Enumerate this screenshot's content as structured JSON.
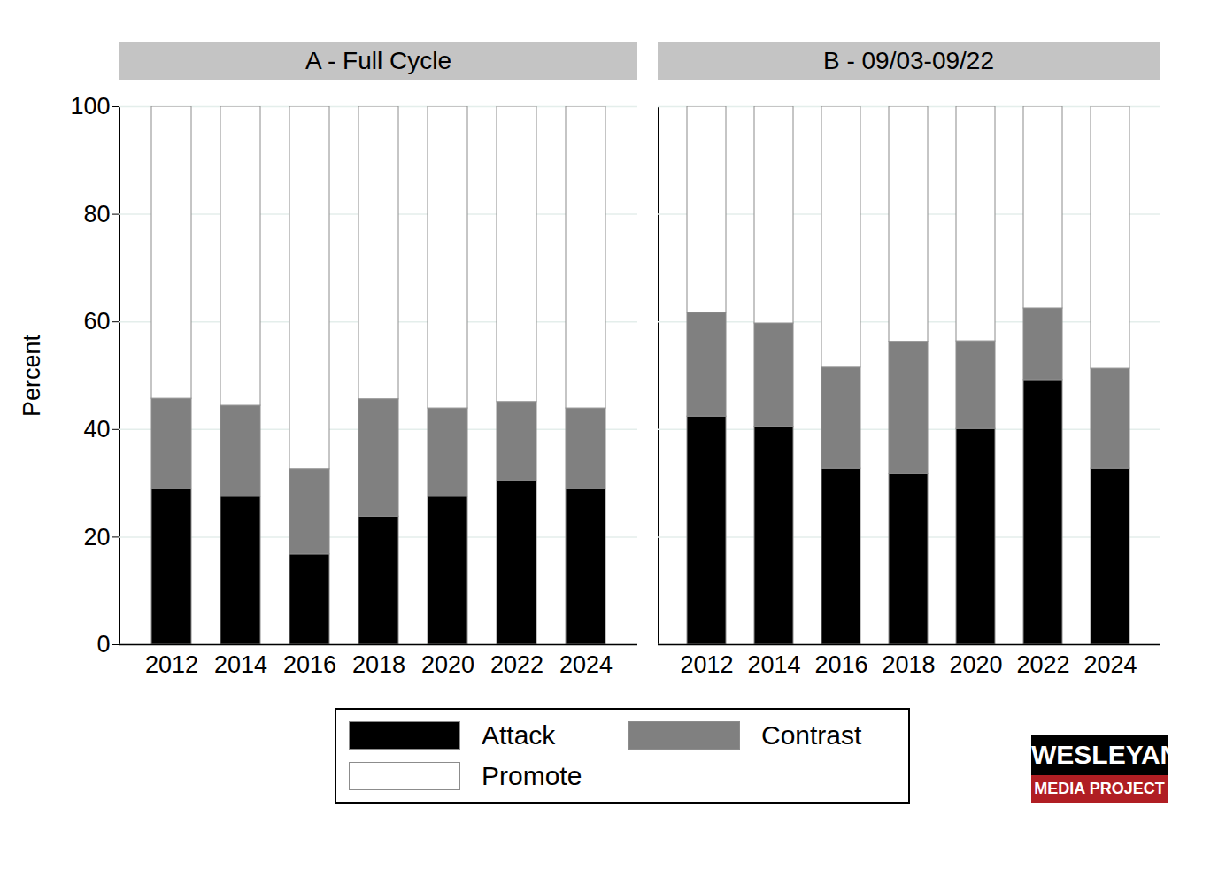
{
  "chart_data": [
    {
      "type": "bar",
      "title": "A - Full Cycle",
      "ylabel": "Percent",
      "categories": [
        "2012",
        "2014",
        "2016",
        "2018",
        "2020",
        "2022",
        "2024"
      ],
      "series": [
        {
          "name": "Attack",
          "color": "#000000",
          "values": [
            28.9,
            27.5,
            16.8,
            23.8,
            27.5,
            30.4,
            28.9
          ]
        },
        {
          "name": "Contrast",
          "color": "#808080",
          "values": [
            16.8,
            16.9,
            15.8,
            21.8,
            16.4,
            14.7,
            15.0
          ]
        },
        {
          "name": "Promote",
          "color": "#ffffff",
          "values": [
            54.3,
            55.6,
            67.4,
            54.4,
            56.1,
            54.9,
            56.1
          ]
        }
      ],
      "ylim": [
        0,
        100
      ],
      "yticks": [
        0,
        20,
        40,
        60,
        80,
        100
      ],
      "grid": true,
      "stacked": true,
      "legend": "bottom"
    },
    {
      "type": "bar",
      "title": "B - 09/03-09/22",
      "categories": [
        "2012",
        "2014",
        "2016",
        "2018",
        "2020",
        "2022",
        "2024"
      ],
      "series": [
        {
          "name": "Attack",
          "color": "#000000",
          "values": [
            42.4,
            40.5,
            32.7,
            31.7,
            40.1,
            49.2,
            32.7
          ]
        },
        {
          "name": "Contrast",
          "color": "#808080",
          "values": [
            19.3,
            19.2,
            18.8,
            24.6,
            16.3,
            13.3,
            18.6
          ]
        },
        {
          "name": "Promote",
          "color": "#ffffff",
          "values": [
            38.3,
            40.3,
            48.5,
            43.7,
            43.6,
            37.5,
            48.7
          ]
        }
      ],
      "ylim": [
        0,
        100
      ],
      "yticks": [
        0,
        20,
        40,
        60,
        80,
        100
      ],
      "grid": true,
      "stacked": true,
      "tick_labels": "x"
    }
  ],
  "logo": [
    "WESLEYAN",
    "MEDIA PROJECT"
  ]
}
